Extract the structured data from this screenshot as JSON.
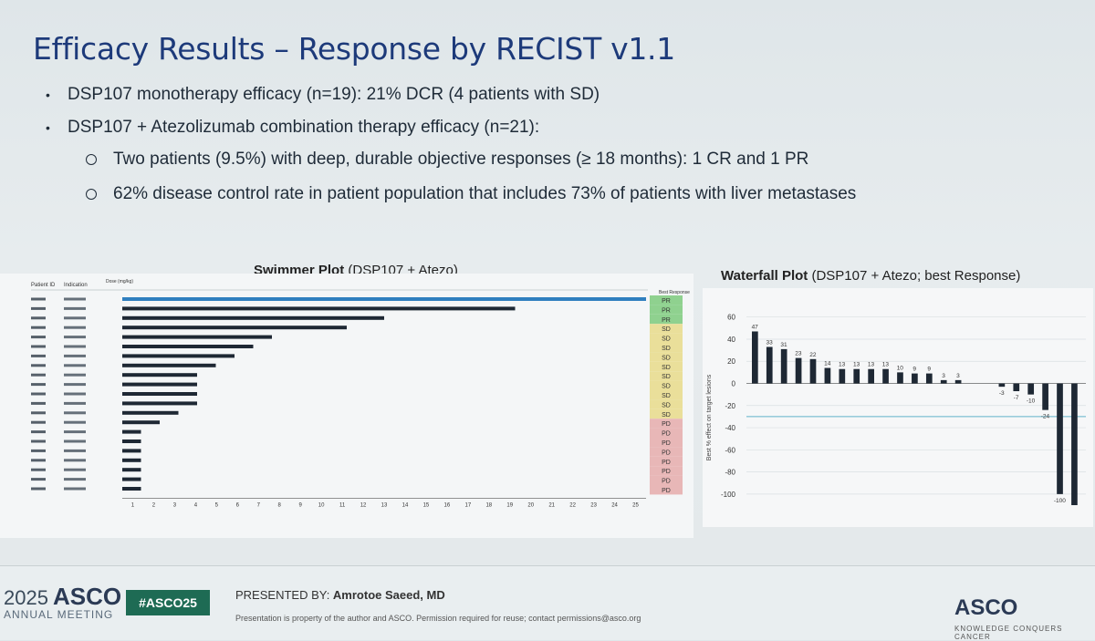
{
  "slide": {
    "title": "Efficacy Results – Response by RECIST v1.1",
    "bullets": [
      "DSP107 monotherapy efficacy (n=19): 21% DCR (4 patients with SD)",
      "DSP107 + Atezolizumab combination therapy efficacy (n=21):"
    ],
    "sub_bullets": [
      "Two patients (9.5%) with deep, durable objective responses (≥ 18 months): 1 CR and 1 PR",
      "62% disease control rate in patient population that includes 73% of patients with liver metastases"
    ]
  },
  "swimmer": {
    "title_bold": "Swimmer Plot",
    "title_rest": " (DSP107 + Atezo)",
    "header_patient": "Patient ID",
    "header_indication": "Indication",
    "header_dose": "Dose (mg/kg)",
    "header_best": "Best Response",
    "colors": {
      "bar": "#1e2834",
      "first_bar": "#2f7fbf",
      "pd": "#e8b7b7",
      "sd": "#eadf9a",
      "pr": "#8fd18f"
    }
  },
  "waterfall": {
    "title_bold": "Waterfall Plot",
    "title_rest": " (DSP107 + Atezo; best Response)",
    "ylabel": "Best % effect on target lesions"
  },
  "chart_data": [
    {
      "type": "bar",
      "orientation": "horizontal",
      "title": "Swimmer Plot (DSP107 + Atezo)",
      "xlabel": "",
      "x_ticks": [
        "1",
        "2",
        "3",
        "4",
        "5",
        "6",
        "7",
        "8",
        "9",
        "10",
        "11",
        "12",
        "13",
        "14",
        "15",
        "16",
        "17",
        "18",
        "19",
        "20",
        "21",
        "22",
        "23",
        "24",
        "25"
      ],
      "series": [
        {
          "values": [
            28,
            21,
            14,
            12,
            8,
            7,
            6,
            5,
            4,
            4,
            4,
            4,
            3,
            2,
            1,
            1,
            1,
            1,
            1,
            1,
            1
          ]
        }
      ],
      "response": [
        "PR",
        "PR",
        "PR",
        "SD",
        "SD",
        "SD",
        "SD",
        "SD",
        "SD",
        "SD",
        "SD",
        "SD",
        "SD",
        "PD",
        "PD",
        "PD",
        "PD",
        "PD",
        "PD",
        "PD",
        "PD"
      ],
      "xlim": [
        0,
        28
      ]
    },
    {
      "type": "bar",
      "title": "Waterfall Plot (DSP107 + Atezo; best Response)",
      "ylabel": "Best % effect on target lesions",
      "y_ticks": [
        "60",
        "40",
        "20",
        "0",
        "-20",
        "-40",
        "-60",
        "-80",
        "-100"
      ],
      "ylim": [
        -110,
        68
      ],
      "values": [
        47,
        33,
        31,
        23,
        22,
        14,
        13,
        13,
        13,
        13,
        10,
        9,
        9,
        3,
        3,
        0,
        0,
        -3,
        -7,
        -10,
        -24,
        -100,
        -110
      ],
      "labels": [
        "47",
        "33",
        "31",
        "23",
        "22",
        "14",
        "13",
        "13",
        "13",
        "13",
        "10",
        "9",
        "9",
        "3",
        "3",
        "",
        "",
        "-3",
        "-7",
        "-10",
        "-24",
        "-100",
        ""
      ],
      "reference_line": -30
    }
  ],
  "footer": {
    "year": "2025",
    "asco": "ASCO",
    "annual_meeting": "ANNUAL MEETING",
    "hashtag": "#ASCO25",
    "presented_prefix": "PRESENTED BY: ",
    "presenter": "Amrotoe Saeed, MD",
    "permission": "Presentation is property of the author and ASCO. Permission required for reuse; contact permissions@asco.org",
    "asco_right": "ASCO",
    "asco_right_sub": "KNOWLEDGE CONQUERS CANCER"
  }
}
